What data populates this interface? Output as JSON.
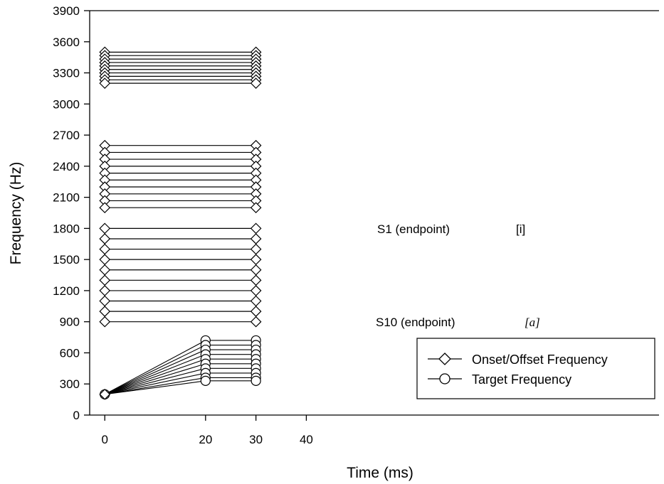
{
  "chart_data": {
    "type": "line",
    "xlabel": "Time (ms)",
    "ylabel": "Frequency (Hz)",
    "xlim": [
      -3,
      110
    ],
    "ylim": [
      0,
      3900
    ],
    "x_ticks": [
      "0",
      "20",
      "30",
      "40"
    ],
    "x_tick_values": [
      0,
      20,
      30,
      40
    ],
    "y_ticks": [
      "0",
      "300",
      "600",
      "900",
      "1200",
      "1500",
      "1800",
      "2100",
      "2400",
      "2700",
      "3000",
      "3300",
      "3600",
      "3900"
    ],
    "y_tick_values": [
      0,
      300,
      600,
      900,
      1200,
      1500,
      1800,
      2100,
      2400,
      2700,
      3000,
      3300,
      3600,
      3900
    ],
    "grid": false,
    "legend": {
      "position": "bottom-right",
      "entries": [
        {
          "label": "Onset/Offset Frequency",
          "marker": "diamond"
        },
        {
          "label": "Target Frequency",
          "marker": "circle"
        }
      ]
    },
    "annotations": [
      {
        "label": "S1 (endpoint)",
        "symbol": "[i]",
        "y": 1800
      },
      {
        "label": "S10 (endpoint)",
        "symbol": "[a]",
        "y": 900
      }
    ],
    "f1_onset": 200,
    "f1_targets": [
      720,
      675,
      630,
      585,
      540,
      495,
      450,
      405,
      360,
      330
    ],
    "f2_steady": [
      1800,
      1700,
      1600,
      1500,
      1400,
      1300,
      1200,
      1100,
      1000,
      900
    ],
    "f3_steady": [
      2600,
      2533,
      2467,
      2400,
      2333,
      2267,
      2200,
      2133,
      2067,
      2000
    ],
    "f4_steady": [
      3500,
      3467,
      3433,
      3400,
      3367,
      3333,
      3300,
      3267,
      3233,
      3200
    ]
  }
}
